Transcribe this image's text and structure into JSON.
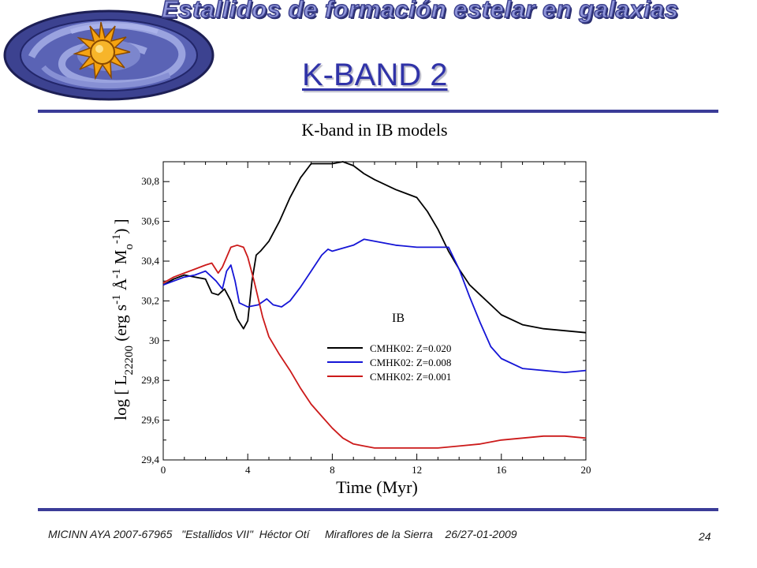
{
  "header": {
    "banner": "Estallidos de formación estelar en galaxias",
    "slide_title": "K-BAND 2"
  },
  "footer": {
    "text": "MICINN AYA 2007-67965   \"Estallidos VII\"  Héctor Otí     Miraflores de la Sierra    26/27-01-2009",
    "page": "24"
  },
  "colors": {
    "accent": "#3b3c98",
    "title": "#3033a8",
    "z020": "#000000",
    "z008": "#1515d6",
    "z001": "#cc1a1a"
  },
  "chart_data": {
    "type": "line",
    "title": "K-band in IB models",
    "xlabel": "Time (Myr)",
    "ylabel_parts": [
      "log [ L",
      "22200",
      "  (erg s",
      "-1",
      " Å",
      "-1",
      " M",
      "o",
      "-1",
      ") ]"
    ],
    "xlim": [
      0,
      20
    ],
    "ylim": [
      29.4,
      30.9
    ],
    "xticks": [
      0,
      4,
      8,
      12,
      16,
      20
    ],
    "yticks": [
      29.4,
      29.6,
      29.8,
      30,
      30.2,
      30.4,
      30.6,
      30.8
    ],
    "ytick_labels": [
      "29,4",
      "29,6",
      "29,8",
      "30",
      "30,2",
      "30,4",
      "30,6",
      "30,8"
    ],
    "legend_title": "IB",
    "legend_position": "center-right",
    "series": [
      {
        "name": "CMHK02: Z=0.020",
        "color": "#000000",
        "x": [
          0,
          0.5,
          1.0,
          1.5,
          2.0,
          2.3,
          2.6,
          2.9,
          3.2,
          3.5,
          3.8,
          4.0,
          4.2,
          4.4,
          4.6,
          5.0,
          5.5,
          6.0,
          6.5,
          7.0,
          7.5,
          8.0,
          8.5,
          9.0,
          9.5,
          10,
          11,
          12,
          12.5,
          13,
          13.5,
          14,
          14.5,
          15,
          16,
          17,
          18,
          19,
          20
        ],
        "y": [
          30.28,
          30.31,
          30.33,
          30.32,
          30.31,
          30.24,
          30.23,
          30.26,
          30.2,
          30.11,
          30.06,
          30.1,
          30.3,
          30.43,
          30.45,
          30.5,
          30.6,
          30.72,
          30.82,
          30.89,
          30.89,
          30.89,
          30.9,
          30.88,
          30.84,
          30.81,
          30.76,
          30.72,
          30.65,
          30.56,
          30.45,
          30.36,
          30.28,
          30.23,
          30.13,
          30.08,
          30.06,
          30.05,
          30.04
        ]
      },
      {
        "name": "CMHK02: Z=0.008",
        "color": "#1515d6",
        "x": [
          0,
          0.5,
          1.0,
          1.5,
          2.0,
          2.5,
          2.8,
          3.0,
          3.2,
          3.4,
          3.6,
          4.0,
          4.5,
          4.9,
          5.2,
          5.6,
          6.0,
          6.5,
          7.0,
          7.5,
          7.8,
          8.0,
          9.0,
          9.5,
          10,
          11,
          12,
          13,
          13.5,
          14,
          14.5,
          15,
          15.5,
          16,
          17,
          18,
          19,
          20
        ],
        "y": [
          30.28,
          30.3,
          30.32,
          30.33,
          30.35,
          30.3,
          30.26,
          30.35,
          30.38,
          30.3,
          30.19,
          30.17,
          30.18,
          30.21,
          30.18,
          30.17,
          30.2,
          30.27,
          30.35,
          30.43,
          30.46,
          30.45,
          30.48,
          30.51,
          30.5,
          30.48,
          30.47,
          30.47,
          30.47,
          30.36,
          30.22,
          30.09,
          29.97,
          29.91,
          29.86,
          29.85,
          29.84,
          29.85
        ]
      },
      {
        "name": "CMHK02: Z=0.001",
        "color": "#cc1a1a",
        "x": [
          0,
          0.5,
          1.0,
          1.5,
          2.0,
          2.3,
          2.6,
          2.8,
          3.0,
          3.2,
          3.5,
          3.8,
          4.0,
          4.3,
          4.7,
          5.0,
          5.5,
          6.0,
          6.5,
          7.0,
          7.5,
          8.0,
          8.5,
          9.0,
          9.5,
          10,
          11,
          12,
          13,
          14,
          15,
          16,
          17,
          18,
          19,
          20
        ],
        "y": [
          30.29,
          30.32,
          30.34,
          30.36,
          30.38,
          30.39,
          30.34,
          30.37,
          30.42,
          30.47,
          30.48,
          30.47,
          30.42,
          30.3,
          30.12,
          30.02,
          29.93,
          29.85,
          29.76,
          29.68,
          29.62,
          29.56,
          29.51,
          29.48,
          29.47,
          29.46,
          29.46,
          29.46,
          29.46,
          29.47,
          29.48,
          29.5,
          29.51,
          29.52,
          29.52,
          29.51
        ]
      }
    ]
  }
}
